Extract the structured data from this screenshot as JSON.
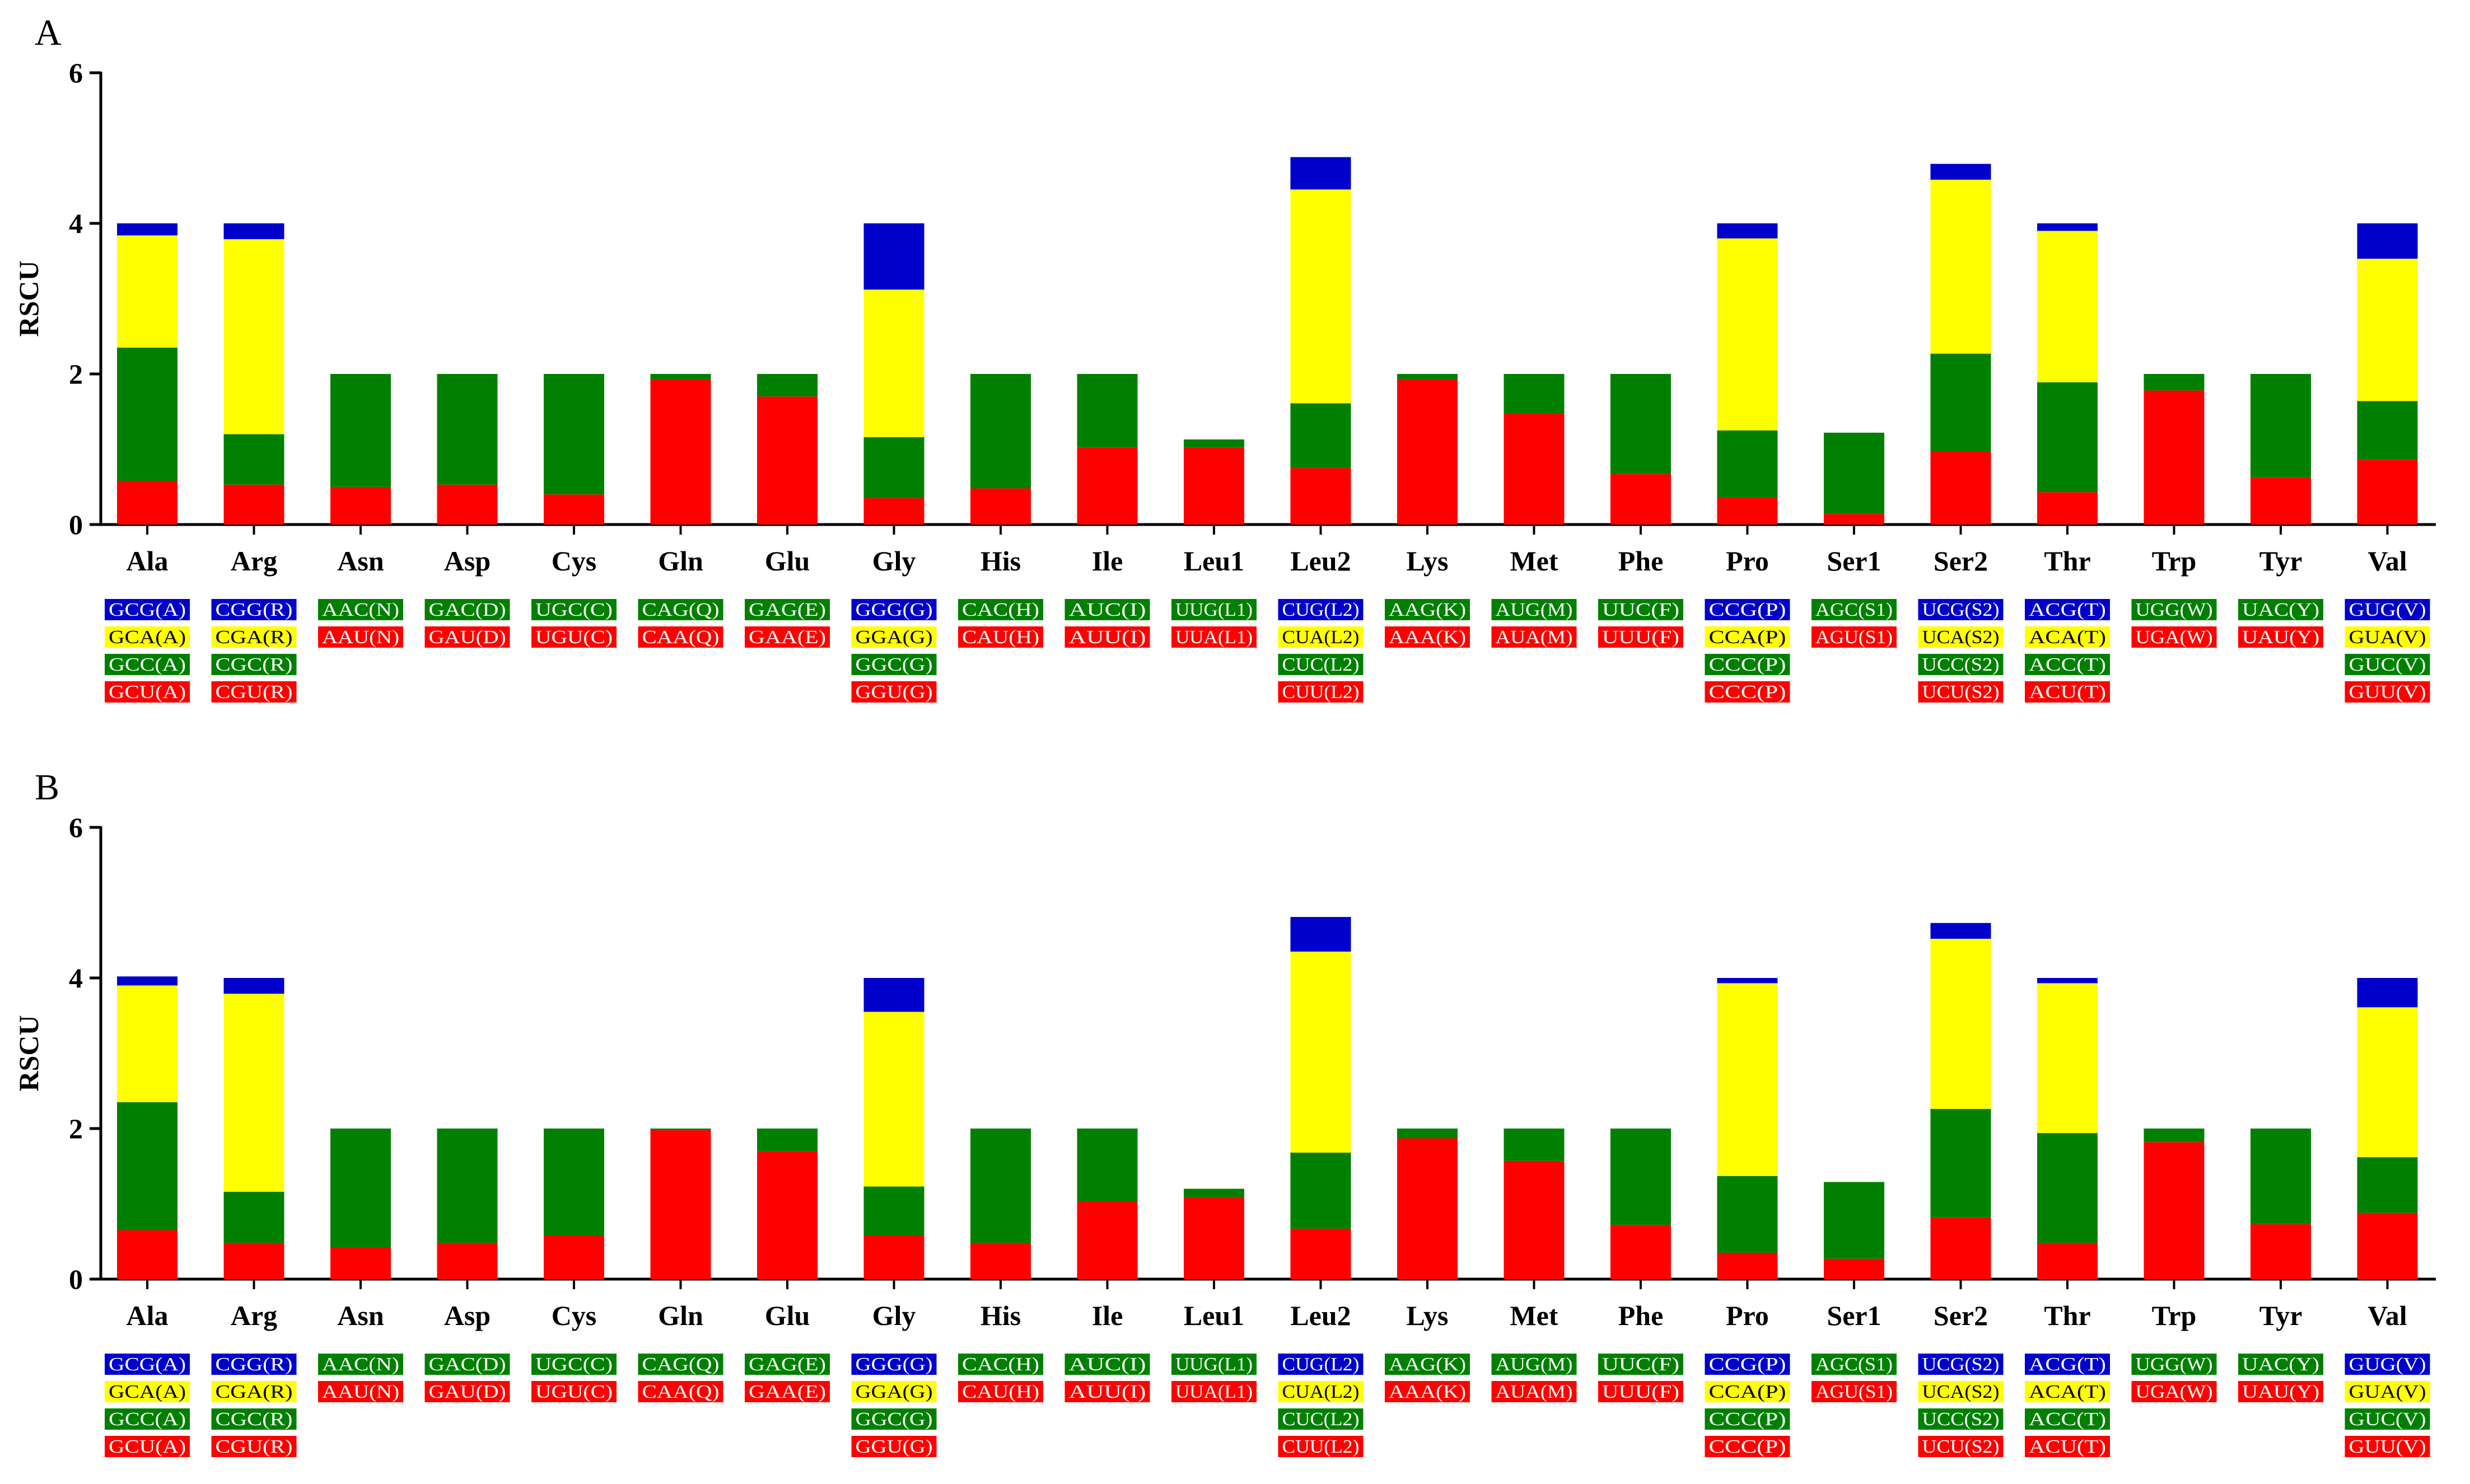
{
  "colors": {
    "red": "#ff0000",
    "green": "#008000",
    "yellow": "#ffff00",
    "blue": "#0000cc",
    "axis": "#000000"
  },
  "chart_data": [
    {
      "type": "bar",
      "panel_label": "A",
      "ylabel": "RSCU",
      "ylim": [
        0,
        6
      ],
      "yticks": [
        "0",
        "2",
        "4",
        "6"
      ],
      "categories": [
        "Ala",
        "Arg",
        "Asn",
        "Asp",
        "Cys",
        "Gln",
        "Glu",
        "Gly",
        "His",
        "Ile",
        "Leu1",
        "Leu2",
        "Lys",
        "Met",
        "Phe",
        "Pro",
        "Ser1",
        "Ser2",
        "Thr",
        "Trp",
        "Tyr",
        "Val"
      ],
      "stack_colors": [
        "red",
        "green",
        "yellow",
        "blue"
      ],
      "series": [
        {
          "name": "codon 1 (red)",
          "values": [
            0.58,
            0.53,
            0.5,
            0.53,
            0.4,
            1.93,
            1.7,
            0.35,
            0.48,
            1.02,
            1.02,
            0.75,
            1.93,
            1.48,
            0.67,
            0.36,
            0.14,
            0.97,
            0.43,
            1.78,
            0.63,
            0.86
          ]
        },
        {
          "name": "codon 2 (green)",
          "values": [
            1.77,
            0.67,
            1.5,
            1.47,
            1.6,
            0.07,
            0.3,
            0.81,
            1.52,
            0.98,
            0.11,
            0.86,
            0.07,
            0.52,
            1.33,
            0.89,
            1.08,
            1.3,
            1.46,
            0.22,
            1.37,
            0.78
          ]
        },
        {
          "name": "codon 3 (yellow)",
          "values": [
            1.49,
            2.59,
            0,
            0,
            0,
            0,
            0,
            1.96,
            0,
            0,
            0,
            2.84,
            0,
            0,
            0,
            2.55,
            0,
            2.31,
            2.01,
            0,
            0,
            1.89
          ]
        },
        {
          "name": "codon 4 (blue)",
          "values": [
            0.16,
            0.21,
            0,
            0,
            0,
            0,
            0,
            0.88,
            0,
            0,
            0,
            0.43,
            0,
            0,
            0,
            0.2,
            0,
            0.21,
            0.1,
            0,
            0,
            0.47
          ]
        }
      ],
      "codon_labels": [
        [
          {
            "text": "GCG(A)",
            "color": "blue"
          },
          {
            "text": "GCA(A)",
            "color": "yellow"
          },
          {
            "text": "GCC(A)",
            "color": "green"
          },
          {
            "text": "GCU(A)",
            "color": "red"
          }
        ],
        [
          {
            "text": "CGG(R)",
            "color": "blue"
          },
          {
            "text": "CGA(R)",
            "color": "yellow"
          },
          {
            "text": "CGC(R)",
            "color": "green"
          },
          {
            "text": "CGU(R)",
            "color": "red"
          }
        ],
        [
          {
            "text": "AAC(N)",
            "color": "green"
          },
          {
            "text": "AAU(N)",
            "color": "red"
          }
        ],
        [
          {
            "text": "GAC(D)",
            "color": "green"
          },
          {
            "text": "GAU(D)",
            "color": "red"
          }
        ],
        [
          {
            "text": "UGC(C)",
            "color": "green"
          },
          {
            "text": "UGU(C)",
            "color": "red"
          }
        ],
        [
          {
            "text": "CAG(Q)",
            "color": "green"
          },
          {
            "text": "CAA(Q)",
            "color": "red"
          }
        ],
        [
          {
            "text": "GAG(E)",
            "color": "green"
          },
          {
            "text": "GAA(E)",
            "color": "red"
          }
        ],
        [
          {
            "text": "GGG(G)",
            "color": "blue"
          },
          {
            "text": "GGA(G)",
            "color": "yellow"
          },
          {
            "text": "GGC(G)",
            "color": "green"
          },
          {
            "text": "GGU(G)",
            "color": "red"
          }
        ],
        [
          {
            "text": "CAC(H)",
            "color": "green"
          },
          {
            "text": "CAU(H)",
            "color": "red"
          }
        ],
        [
          {
            "text": "AUC(I)",
            "color": "green"
          },
          {
            "text": "AUU(I)",
            "color": "red"
          }
        ],
        [
          {
            "text": "UUG(L1)",
            "color": "green"
          },
          {
            "text": "UUA(L1)",
            "color": "red"
          }
        ],
        [
          {
            "text": "CUG(L2)",
            "color": "blue"
          },
          {
            "text": "CUA(L2)",
            "color": "yellow"
          },
          {
            "text": "CUC(L2)",
            "color": "green"
          },
          {
            "text": "CUU(L2)",
            "color": "red"
          }
        ],
        [
          {
            "text": "AAG(K)",
            "color": "green"
          },
          {
            "text": "AAA(K)",
            "color": "red"
          }
        ],
        [
          {
            "text": "AUG(M)",
            "color": "green"
          },
          {
            "text": "AUA(M)",
            "color": "red"
          }
        ],
        [
          {
            "text": "UUC(F)",
            "color": "green"
          },
          {
            "text": "UUU(F)",
            "color": "red"
          }
        ],
        [
          {
            "text": "CCG(P)",
            "color": "blue"
          },
          {
            "text": "CCA(P)",
            "color": "yellow"
          },
          {
            "text": "CCC(P)",
            "color": "green"
          },
          {
            "text": "CCC(P)",
            "color": "red"
          }
        ],
        [
          {
            "text": "AGC(S1)",
            "color": "green"
          },
          {
            "text": "AGU(S1)",
            "color": "red"
          }
        ],
        [
          {
            "text": "UCG(S2)",
            "color": "blue"
          },
          {
            "text": "UCA(S2)",
            "color": "yellow"
          },
          {
            "text": "UCC(S2)",
            "color": "green"
          },
          {
            "text": "UCU(S2)",
            "color": "red"
          }
        ],
        [
          {
            "text": "ACG(T)",
            "color": "blue"
          },
          {
            "text": "ACA(T)",
            "color": "yellow"
          },
          {
            "text": "ACC(T)",
            "color": "green"
          },
          {
            "text": "ACU(T)",
            "color": "red"
          }
        ],
        [
          {
            "text": "UGG(W)",
            "color": "green"
          },
          {
            "text": "UGA(W)",
            "color": "red"
          }
        ],
        [
          {
            "text": "UAC(Y)",
            "color": "green"
          },
          {
            "text": "UAU(Y)",
            "color": "red"
          }
        ],
        [
          {
            "text": "GUG(V)",
            "color": "blue"
          },
          {
            "text": "GUA(V)",
            "color": "yellow"
          },
          {
            "text": "GUC(V)",
            "color": "green"
          },
          {
            "text": "GUU(V)",
            "color": "red"
          }
        ]
      ]
    },
    {
      "type": "bar",
      "panel_label": "B",
      "ylabel": "RSCU",
      "ylim": [
        0,
        6
      ],
      "yticks": [
        "0",
        "2",
        "4",
        "6"
      ],
      "categories": [
        "Ala",
        "Arg",
        "Asn",
        "Asp",
        "Cys",
        "Gln",
        "Glu",
        "Gly",
        "His",
        "Ile",
        "Leu1",
        "Leu2",
        "Lys",
        "Met",
        "Phe",
        "Pro",
        "Ser1",
        "Ser2",
        "Thr",
        "Trp",
        "Tyr",
        "Val"
      ],
      "stack_colors": [
        "red",
        "green",
        "yellow",
        "blue"
      ],
      "series": [
        {
          "name": "codon 1 (red)",
          "values": [
            0.65,
            0.48,
            0.42,
            0.48,
            0.58,
            1.98,
            1.7,
            0.58,
            0.48,
            1.03,
            1.09,
            0.67,
            1.87,
            1.57,
            0.72,
            0.35,
            0.27,
            0.82,
            0.48,
            1.82,
            0.73,
            0.88
          ]
        },
        {
          "name": "codon 2 (green)",
          "values": [
            1.7,
            0.68,
            1.58,
            1.52,
            1.42,
            0.02,
            0.3,
            0.65,
            1.52,
            0.97,
            0.11,
            1.01,
            0.13,
            0.43,
            1.28,
            1.02,
            1.02,
            1.44,
            1.46,
            0.18,
            1.27,
            0.74
          ]
        },
        {
          "name": "codon 3 (yellow)",
          "values": [
            1.55,
            2.63,
            0,
            0,
            0,
            0,
            0,
            2.32,
            0,
            0,
            0,
            2.67,
            0,
            0,
            0,
            2.56,
            0,
            2.26,
            1.99,
            0,
            0,
            1.99
          ]
        },
        {
          "name": "codon 4 (blue)",
          "values": [
            0.12,
            0.21,
            0,
            0,
            0,
            0,
            0,
            0.45,
            0,
            0,
            0,
            0.46,
            0,
            0,
            0,
            0.07,
            0,
            0.21,
            0.07,
            0,
            0,
            0.39
          ]
        }
      ],
      "codon_labels": [
        [
          {
            "text": "GCG(A)",
            "color": "blue"
          },
          {
            "text": "GCA(A)",
            "color": "yellow"
          },
          {
            "text": "GCC(A)",
            "color": "green"
          },
          {
            "text": "GCU(A)",
            "color": "red"
          }
        ],
        [
          {
            "text": "CGG(R)",
            "color": "blue"
          },
          {
            "text": "CGA(R)",
            "color": "yellow"
          },
          {
            "text": "CGC(R)",
            "color": "green"
          },
          {
            "text": "CGU(R)",
            "color": "red"
          }
        ],
        [
          {
            "text": "AAC(N)",
            "color": "green"
          },
          {
            "text": "AAU(N)",
            "color": "red"
          }
        ],
        [
          {
            "text": "GAC(D)",
            "color": "green"
          },
          {
            "text": "GAU(D)",
            "color": "red"
          }
        ],
        [
          {
            "text": "UGC(C)",
            "color": "green"
          },
          {
            "text": "UGU(C)",
            "color": "red"
          }
        ],
        [
          {
            "text": "CAG(Q)",
            "color": "green"
          },
          {
            "text": "CAA(Q)",
            "color": "red"
          }
        ],
        [
          {
            "text": "GAG(E)",
            "color": "green"
          },
          {
            "text": "GAA(E)",
            "color": "red"
          }
        ],
        [
          {
            "text": "GGG(G)",
            "color": "blue"
          },
          {
            "text": "GGA(G)",
            "color": "yellow"
          },
          {
            "text": "GGC(G)",
            "color": "green"
          },
          {
            "text": "GGU(G)",
            "color": "red"
          }
        ],
        [
          {
            "text": "CAC(H)",
            "color": "green"
          },
          {
            "text": "CAU(H)",
            "color": "red"
          }
        ],
        [
          {
            "text": "AUC(I)",
            "color": "green"
          },
          {
            "text": "AUU(I)",
            "color": "red"
          }
        ],
        [
          {
            "text": "UUG(L1)",
            "color": "green"
          },
          {
            "text": "UUA(L1)",
            "color": "red"
          }
        ],
        [
          {
            "text": "CUG(L2)",
            "color": "blue"
          },
          {
            "text": "CUA(L2)",
            "color": "yellow"
          },
          {
            "text": "CUC(L2)",
            "color": "green"
          },
          {
            "text": "CUU(L2)",
            "color": "red"
          }
        ],
        [
          {
            "text": "AAG(K)",
            "color": "green"
          },
          {
            "text": "AAA(K)",
            "color": "red"
          }
        ],
        [
          {
            "text": "AUG(M)",
            "color": "green"
          },
          {
            "text": "AUA(M)",
            "color": "red"
          }
        ],
        [
          {
            "text": "UUC(F)",
            "color": "green"
          },
          {
            "text": "UUU(F)",
            "color": "red"
          }
        ],
        [
          {
            "text": "CCG(P)",
            "color": "blue"
          },
          {
            "text": "CCA(P)",
            "color": "yellow"
          },
          {
            "text": "CCC(P)",
            "color": "green"
          },
          {
            "text": "CCC(P)",
            "color": "red"
          }
        ],
        [
          {
            "text": "AGC(S1)",
            "color": "green"
          },
          {
            "text": "AGU(S1)",
            "color": "red"
          }
        ],
        [
          {
            "text": "UCG(S2)",
            "color": "blue"
          },
          {
            "text": "UCA(S2)",
            "color": "yellow"
          },
          {
            "text": "UCC(S2)",
            "color": "green"
          },
          {
            "text": "UCU(S2)",
            "color": "red"
          }
        ],
        [
          {
            "text": "ACG(T)",
            "color": "blue"
          },
          {
            "text": "ACA(T)",
            "color": "yellow"
          },
          {
            "text": "ACC(T)",
            "color": "green"
          },
          {
            "text": "ACU(T)",
            "color": "red"
          }
        ],
        [
          {
            "text": "UGG(W)",
            "color": "green"
          },
          {
            "text": "UGA(W)",
            "color": "red"
          }
        ],
        [
          {
            "text": "UAC(Y)",
            "color": "green"
          },
          {
            "text": "UAU(Y)",
            "color": "red"
          }
        ],
        [
          {
            "text": "GUG(V)",
            "color": "blue"
          },
          {
            "text": "GUA(V)",
            "color": "yellow"
          },
          {
            "text": "GUC(V)",
            "color": "green"
          },
          {
            "text": "GUU(V)",
            "color": "red"
          }
        ]
      ]
    }
  ]
}
